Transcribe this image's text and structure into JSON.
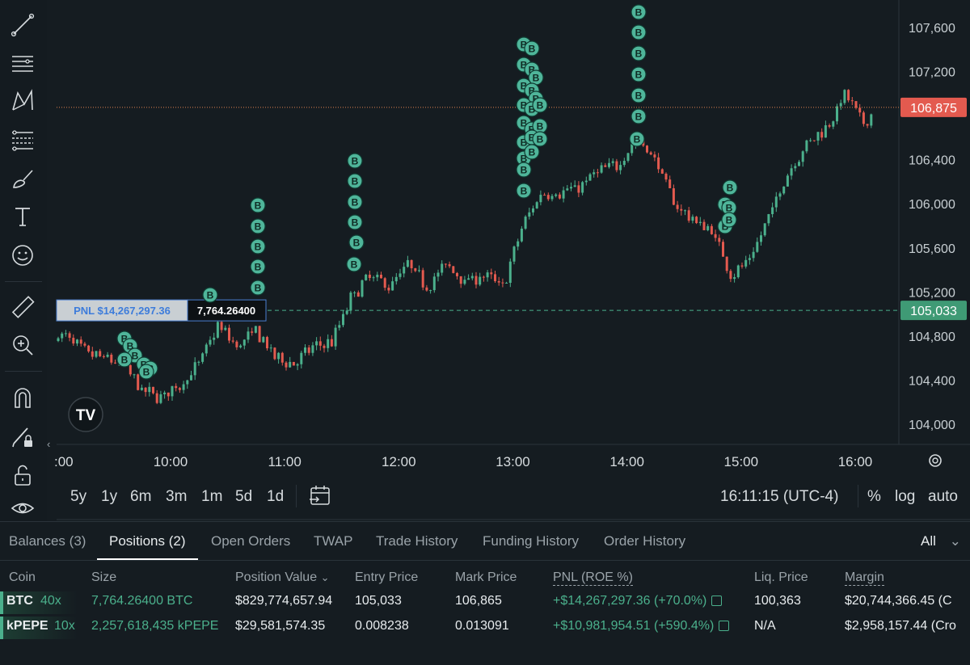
{
  "toolbar": {
    "tools": [
      "trendline-icon",
      "horizontal-lines-icon",
      "pattern-icon",
      "fib-icon",
      "brush-icon",
      "text-icon",
      "emoji-icon",
      "ruler-icon",
      "zoom-in-icon",
      "magnet-icon",
      "lock-draw-icon",
      "unlock-icon",
      "eye-icon"
    ]
  },
  "chart": {
    "price_axis_labels": [
      "107,600",
      "107,200",
      "106,400",
      "106,000",
      "105,600",
      "105,200",
      "104,800",
      "104,400",
      "104,000"
    ],
    "current_price_label": "106,875",
    "entry_price_label": "105,033",
    "pnl_label": "PNL $14,267,297.36",
    "size_label": "7,764.26400",
    "time_labels": [
      ":00",
      "10:00",
      "11:00",
      "12:00",
      "13:00",
      "14:00",
      "15:00",
      "16:00"
    ],
    "buy_marker_text": "B",
    "logo_text": "TV"
  },
  "chart_data": {
    "type": "line",
    "xlabel": "",
    "ylabel": "",
    "ylim": [
      103800,
      107750
    ],
    "x": [
      "09:05",
      "09:15",
      "09:25",
      "09:35",
      "09:45",
      "09:55",
      "10:05",
      "10:15",
      "10:25",
      "10:35",
      "10:45",
      "10:55",
      "11:05",
      "11:15",
      "11:25",
      "11:35",
      "11:45",
      "11:55",
      "12:05",
      "12:15",
      "12:25",
      "12:35",
      "12:45",
      "12:55",
      "13:05",
      "13:15",
      "13:25",
      "13:35",
      "13:45",
      "13:55",
      "14:05",
      "14:15",
      "14:25",
      "14:35",
      "14:45",
      "14:55",
      "15:05",
      "15:15",
      "15:25",
      "15:35",
      "15:45",
      "15:55",
      "16:05",
      "16:10"
    ],
    "series": [
      {
        "values": [
          104800,
          104650,
          104600,
          104550,
          104300,
          104250,
          104350,
          104550,
          104900,
          104700,
          104850,
          104600,
          104550,
          104700,
          104750,
          105150,
          105350,
          105250,
          105450,
          105250,
          105450,
          105300,
          105350,
          105250,
          105800,
          106100,
          106100,
          106150,
          106300,
          106350,
          106600,
          106400,
          106000,
          105850,
          105750,
          105350,
          105500,
          105900,
          106300,
          106550,
          106700,
          107000,
          106700,
          106875
        ]
      }
    ],
    "entry_price": 105033,
    "current_price": 106875
  },
  "timeframes": [
    "5y",
    "1y",
    "6m",
    "3m",
    "1m",
    "5d",
    "1d"
  ],
  "status": {
    "clock": "16:11:15 (UTC-4)",
    "percent": "%",
    "log": "log",
    "auto": "auto"
  },
  "tabs": [
    "Balances (3)",
    "Positions (2)",
    "Open Orders",
    "TWAP",
    "Trade History",
    "Funding History",
    "Order History"
  ],
  "filter": "All",
  "table": {
    "headers": [
      "Coin",
      "Size",
      "Position Value",
      "Entry Price",
      "Mark Price",
      "PNL (ROE %)",
      "Liq. Price",
      "Margin"
    ],
    "rows": [
      {
        "coin": "BTC",
        "leverage": "40x",
        "size": "7,764.26400 BTC",
        "value": "$829,774,657.94",
        "entry": "105,033",
        "mark": "106,865",
        "pnl": "+$14,267,297.36 (+70.0%)",
        "liq": "100,363",
        "margin": "$20,744,366.45 (C"
      },
      {
        "coin": "kPEPE",
        "leverage": "10x",
        "size": "2,257,618,435 kPEPE",
        "value": "$29,581,574.35",
        "entry": "0.008238",
        "mark": "0.013091",
        "pnl": "+$10,981,954.51 (+590.4%)",
        "liq": "N/A",
        "margin": "$2,958,157.44 (Cro"
      }
    ]
  },
  "colors": {
    "up": "#4bb08c",
    "down": "#e35a4f",
    "background": "#151c21",
    "marker": "#4fb59a"
  }
}
